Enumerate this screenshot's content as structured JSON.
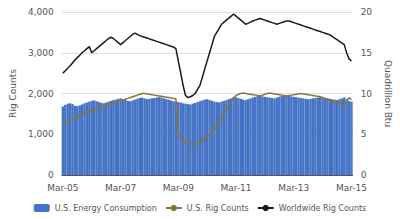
{
  "chart_data": {
    "type": "bar",
    "ylabel": "Rig Counts",
    "y2label": "Quadrillion Btu",
    "categories": [
      "Mar-05",
      null,
      null,
      null,
      null,
      null,
      null,
      null,
      null,
      null,
      null,
      null,
      null,
      null,
      null,
      null,
      null,
      null,
      null,
      null,
      null,
      null,
      null,
      null,
      "Mar-07",
      null,
      null,
      null,
      null,
      null,
      null,
      null,
      null,
      null,
      null,
      null,
      null,
      null,
      null,
      null,
      null,
      null,
      null,
      null,
      null,
      null,
      null,
      null,
      "Mar-09",
      null,
      null,
      null,
      null,
      null,
      null,
      null,
      null,
      null,
      null,
      null,
      null,
      null,
      null,
      null,
      null,
      null,
      null,
      null,
      null,
      null,
      null,
      null,
      "Mar-11",
      null,
      null,
      null,
      null,
      null,
      null,
      null,
      null,
      null,
      null,
      null,
      null,
      null,
      null,
      null,
      null,
      null,
      null,
      null,
      null,
      null,
      null,
      null,
      "Mar-13",
      null,
      null,
      null,
      null,
      null,
      null,
      null,
      null,
      null,
      null,
      null,
      null,
      null,
      null,
      null,
      null,
      null,
      null,
      null,
      null,
      null,
      null,
      null,
      "Mar-15"
    ],
    "ylim": [
      0,
      4000
    ],
    "yticks": [
      0,
      1000,
      2000,
      3000,
      4000
    ],
    "y2lim": [
      0,
      20
    ],
    "y2ticks": [
      0,
      5,
      10,
      15,
      20
    ],
    "grid": true,
    "legend": "bottom",
    "series": [
      {
        "name": "U.S. Energy Consumption",
        "type": "bar",
        "color": "#4472C4",
        "values": [
          1680,
          1720,
          1750,
          1760,
          1740,
          1700,
          1690,
          1710,
          1730,
          1760,
          1780,
          1800,
          1820,
          1830,
          1810,
          1790,
          1770,
          1760,
          1780,
          1800,
          1820,
          1840,
          1850,
          1870,
          1880,
          1860,
          1840,
          1820,
          1810,
          1830,
          1850,
          1870,
          1890,
          1900,
          1880,
          1860,
          1870,
          1880,
          1890,
          1900,
          1910,
          1900,
          1880,
          1860,
          1850,
          1830,
          1810,
          1800,
          1790,
          1780,
          1760,
          1750,
          1740,
          1730,
          1750,
          1770,
          1790,
          1810,
          1830,
          1850,
          1860,
          1840,
          1820,
          1800,
          1790,
          1780,
          1800,
          1820,
          1840,
          1860,
          1880,
          1900,
          1910,
          1890,
          1870,
          1850,
          1840,
          1860,
          1880,
          1900,
          1920,
          1940,
          1950,
          1930,
          1920,
          1910,
          1900,
          1890,
          1880,
          1900,
          1920,
          1940,
          1960,
          1950,
          1940,
          1930,
          1920,
          1910,
          1900,
          1890,
          1880,
          1870,
          1860,
          1870,
          1880,
          1890,
          1900,
          1910,
          1900,
          1890,
          1880,
          1870,
          1860,
          1850,
          1840,
          1860,
          1880,
          1900,
          1860,
          1820,
          1800
        ]
      },
      {
        "name": "U.S. Rig Counts",
        "type": "line",
        "color": "#8B7536",
        "values": [
          1250,
          1280,
          1310,
          1340,
          1370,
          1400,
          1430,
          1460,
          1490,
          1520,
          1550,
          1570,
          1590,
          1610,
          1630,
          1650,
          1670,
          1680,
          1700,
          1720,
          1740,
          1760,
          1780,
          1800,
          1820,
          1840,
          1860,
          1880,
          1900,
          1920,
          1940,
          1960,
          1980,
          2000,
          2000,
          1990,
          1980,
          1970,
          1960,
          1950,
          1940,
          1930,
          1920,
          1910,
          1900,
          1890,
          1880,
          1870,
          1000,
          900,
          850,
          800,
          780,
          760,
          750,
          760,
          780,
          800,
          850,
          900,
          950,
          1000,
          1050,
          1100,
          1200,
          1300,
          1400,
          1500,
          1600,
          1700,
          1800,
          1900,
          1950,
          1980,
          2000,
          2010,
          2000,
          1990,
          1980,
          1970,
          1960,
          1950,
          1940,
          1960,
          1980,
          2000,
          2010,
          2000,
          1990,
          1980,
          1970,
          1960,
          1950,
          1940,
          1950,
          1960,
          1970,
          1980,
          1990,
          2000,
          1990,
          1980,
          1970,
          1960,
          1950,
          1940,
          1930,
          1920,
          1900,
          1880,
          1860,
          1840,
          1820,
          1800,
          1780,
          1760,
          1740,
          1720,
          1800,
          1900,
          1850
        ]
      },
      {
        "name": "Worldwide Rig Counts",
        "type": "line",
        "color": "#1a1a1a",
        "values": [
          2500,
          2560,
          2620,
          2680,
          2750,
          2820,
          2880,
          2940,
          3000,
          3050,
          3100,
          3150,
          3000,
          3050,
          3100,
          3150,
          3200,
          3250,
          3300,
          3350,
          3380,
          3350,
          3300,
          3250,
          3200,
          3250,
          3300,
          3350,
          3400,
          3450,
          3480,
          3450,
          3420,
          3400,
          3380,
          3360,
          3340,
          3320,
          3300,
          3280,
          3260,
          3240,
          3220,
          3200,
          3180,
          3160,
          3140,
          3100,
          2800,
          2500,
          2200,
          1950,
          1900,
          1920,
          1950,
          2000,
          2100,
          2200,
          2400,
          2600,
          2800,
          3000,
          3200,
          3400,
          3500,
          3600,
          3700,
          3750,
          3800,
          3850,
          3900,
          3950,
          3900,
          3850,
          3800,
          3750,
          3700,
          3720,
          3750,
          3780,
          3800,
          3820,
          3840,
          3820,
          3800,
          3780,
          3760,
          3740,
          3720,
          3700,
          3720,
          3740,
          3760,
          3780,
          3780,
          3760,
          3740,
          3720,
          3700,
          3680,
          3660,
          3640,
          3620,
          3600,
          3580,
          3560,
          3540,
          3520,
          3500,
          3480,
          3460,
          3440,
          3400,
          3360,
          3320,
          3280,
          3240,
          3200,
          3000,
          2850,
          2800
        ]
      }
    ]
  }
}
